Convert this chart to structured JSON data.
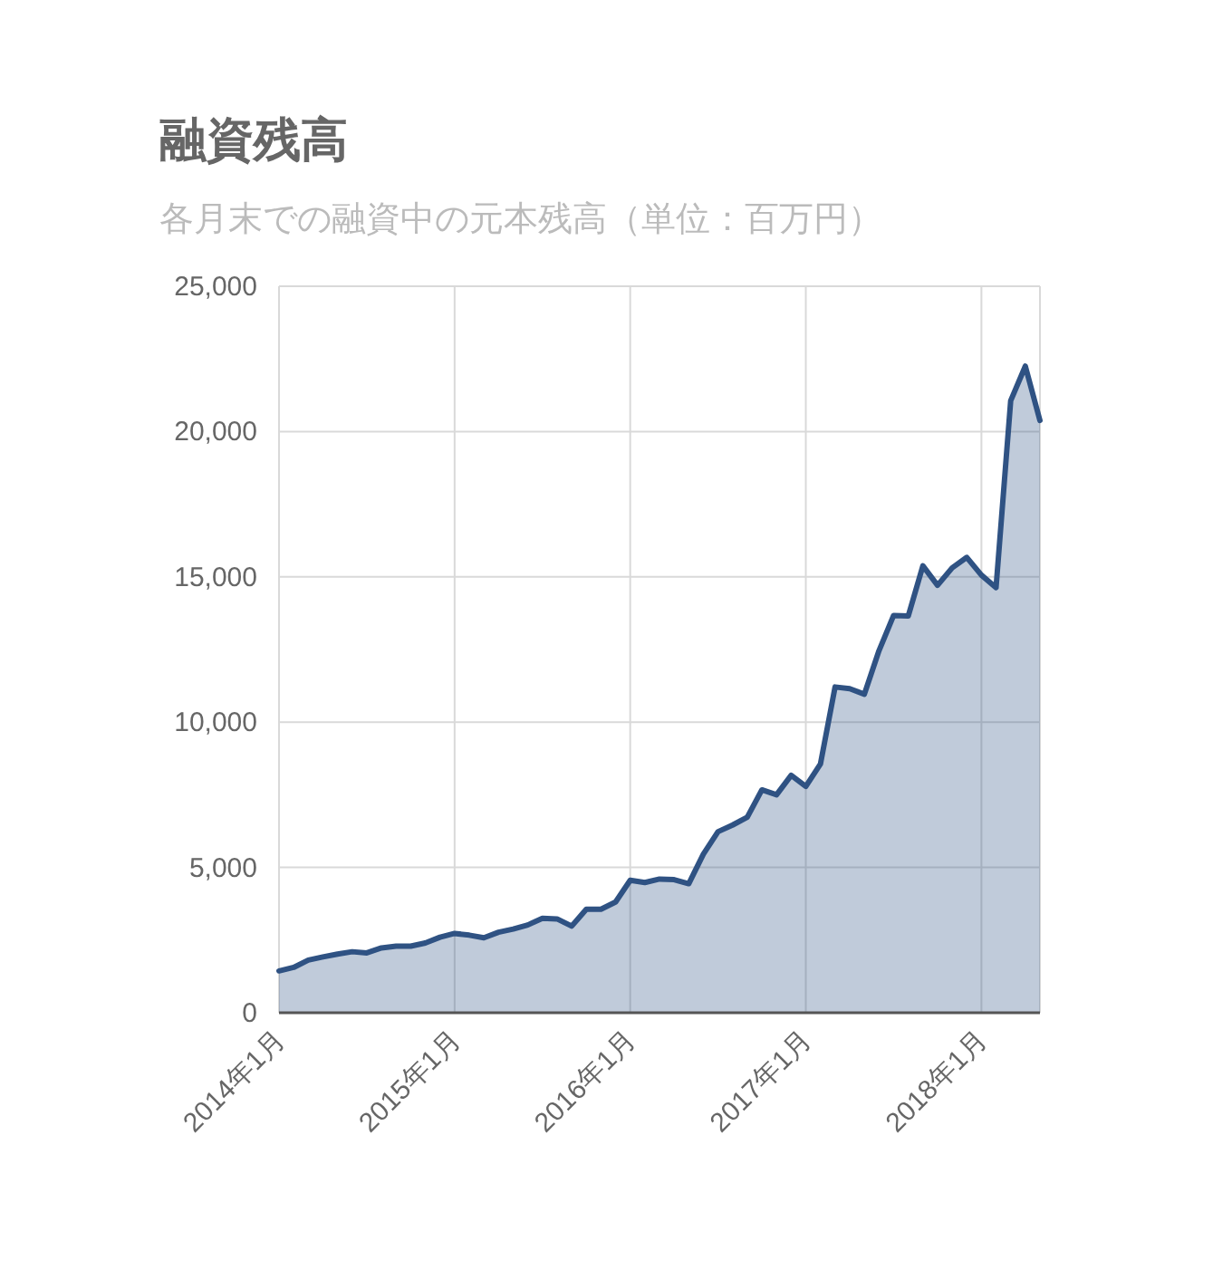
{
  "chart_data": {
    "type": "area",
    "title": "融資残高",
    "subtitle": "各月末での融資中の元本残高（単位：百万円）",
    "x": [
      "2014-01",
      "2014-02",
      "2014-03",
      "2014-04",
      "2014-05",
      "2014-06",
      "2014-07",
      "2014-08",
      "2014-09",
      "2014-10",
      "2014-11",
      "2014-12",
      "2015-01",
      "2015-02",
      "2015-03",
      "2015-04",
      "2015-05",
      "2015-06",
      "2015-07",
      "2015-08",
      "2015-09",
      "2015-10",
      "2015-11",
      "2015-12",
      "2016-01",
      "2016-02",
      "2016-03",
      "2016-04",
      "2016-05",
      "2016-06",
      "2016-07",
      "2016-08",
      "2016-09",
      "2016-10",
      "2016-11",
      "2016-12",
      "2017-01",
      "2017-02",
      "2017-03",
      "2017-04",
      "2017-05",
      "2017-06",
      "2017-07",
      "2017-08",
      "2017-09",
      "2017-10",
      "2017-11",
      "2017-12",
      "2018-01",
      "2018-02",
      "2018-03",
      "2018-04",
      "2018-05"
    ],
    "values": [
      1440,
      1560,
      1810,
      1920,
      2020,
      2100,
      2060,
      2230,
      2290,
      2290,
      2400,
      2600,
      2730,
      2670,
      2580,
      2770,
      2880,
      3020,
      3250,
      3230,
      2980,
      3560,
      3560,
      3810,
      4560,
      4480,
      4600,
      4580,
      4440,
      5460,
      6230,
      6460,
      6730,
      7670,
      7500,
      8170,
      7790,
      8560,
      11210,
      11150,
      10960,
      12460,
      13670,
      13650,
      15380,
      14710,
      15310,
      15670,
      15060,
      14630,
      21060,
      22250,
      20380
    ],
    "color": "#2f5283",
    "xlim": [
      "2014-01",
      "2018-05"
    ],
    "xticks": [
      {
        "value": "2014-01",
        "label": "2014年1月"
      },
      {
        "value": "2015-01",
        "label": "2015年1月"
      },
      {
        "value": "2016-01",
        "label": "2016年1月"
      },
      {
        "value": "2017-01",
        "label": "2017年1月"
      },
      {
        "value": "2018-01",
        "label": "2018年1月"
      }
    ],
    "ylim": [
      0,
      25000
    ],
    "yticks": [
      0,
      {
        "value": 5000,
        "label": "5,000"
      },
      {
        "value": 10000,
        "label": "10,000"
      },
      {
        "value": 15000,
        "label": "15,000"
      },
      {
        "value": 20000,
        "label": "20,000"
      },
      {
        "value": 25000,
        "label": "25,000"
      }
    ],
    "grid": true
  }
}
